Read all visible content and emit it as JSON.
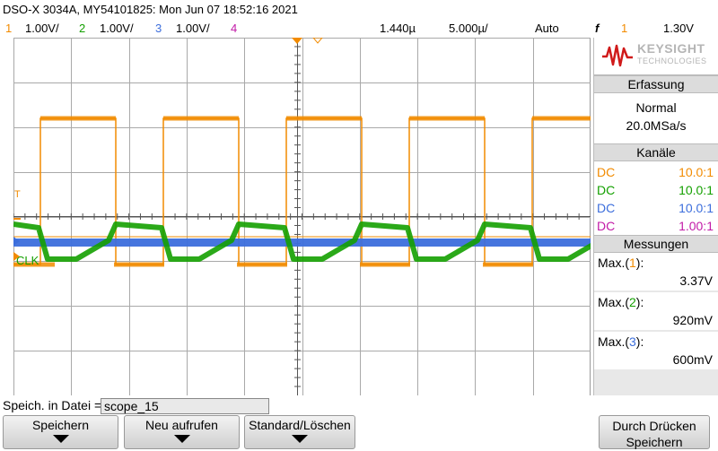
{
  "title_bar": {
    "text": "DSO-X 3034A, MY54101825: Mon Jun 07 18:52:16 2021"
  },
  "channels": [
    {
      "num": "1",
      "scale": "1.00V/",
      "color": "#f28b00"
    },
    {
      "num": "2",
      "scale": "1.00V/",
      "color": "#14a000"
    },
    {
      "num": "3",
      "scale": "1.00V/",
      "color": "#3c6edc"
    },
    {
      "num": "4",
      "scale": "",
      "color": "#c21aa7"
    }
  ],
  "timebase": {
    "delay": "1.440µ",
    "scale": "5.000µ/"
  },
  "trigger": {
    "mode": "Auto",
    "edge_symbol": "f",
    "source": "1",
    "level": "1.30V"
  },
  "screen": {
    "clk_label": "CLK",
    "trigger_marker": "T",
    "colors": {
      "grid": "#a9a9a9",
      "ch1": "#f28b00",
      "ch2": "#14a000",
      "ch3": "#3c6edc"
    }
  },
  "panel": {
    "logo_word": "KEYSIGHT",
    "logo_sub": "TECHNOLOGIES",
    "acquisition": {
      "title": "Erfassung",
      "mode": "Normal",
      "rate": "20.0MSa/s"
    },
    "channels_section": {
      "title": "Kanäle",
      "rows": [
        {
          "coupling": "DC",
          "probe": "10.0:1",
          "color": "#f28b00"
        },
        {
          "coupling": "DC",
          "probe": "10.0:1",
          "color": "#14a000"
        },
        {
          "coupling": "DC",
          "probe": "10.0:1",
          "color": "#3c6edc"
        },
        {
          "coupling": "DC",
          "probe": "1.00:1",
          "color": "#c21aa7"
        }
      ]
    },
    "measurements": {
      "title": "Messungen",
      "items": [
        {
          "label_prefix": "Max.(",
          "channel": "1",
          "label_suffix": "):",
          "value": "3.37V",
          "color": "#f28b00"
        },
        {
          "label_prefix": "Max.(",
          "channel": "2",
          "label_suffix": "):",
          "value": "920mV",
          "color": "#14a000"
        },
        {
          "label_prefix": "Max.(",
          "channel": "3",
          "label_suffix": "):",
          "value": "600mV",
          "color": "#3c6edc"
        }
      ]
    }
  },
  "save": {
    "label": "Speich. in Datei =",
    "filename": "scope_15"
  },
  "softkeys": {
    "save": "Speichern",
    "recall": "Neu aufrufen",
    "default": "Standard/Löschen",
    "press_line1": "Durch Drücken",
    "press_line2": "Speichern"
  }
}
